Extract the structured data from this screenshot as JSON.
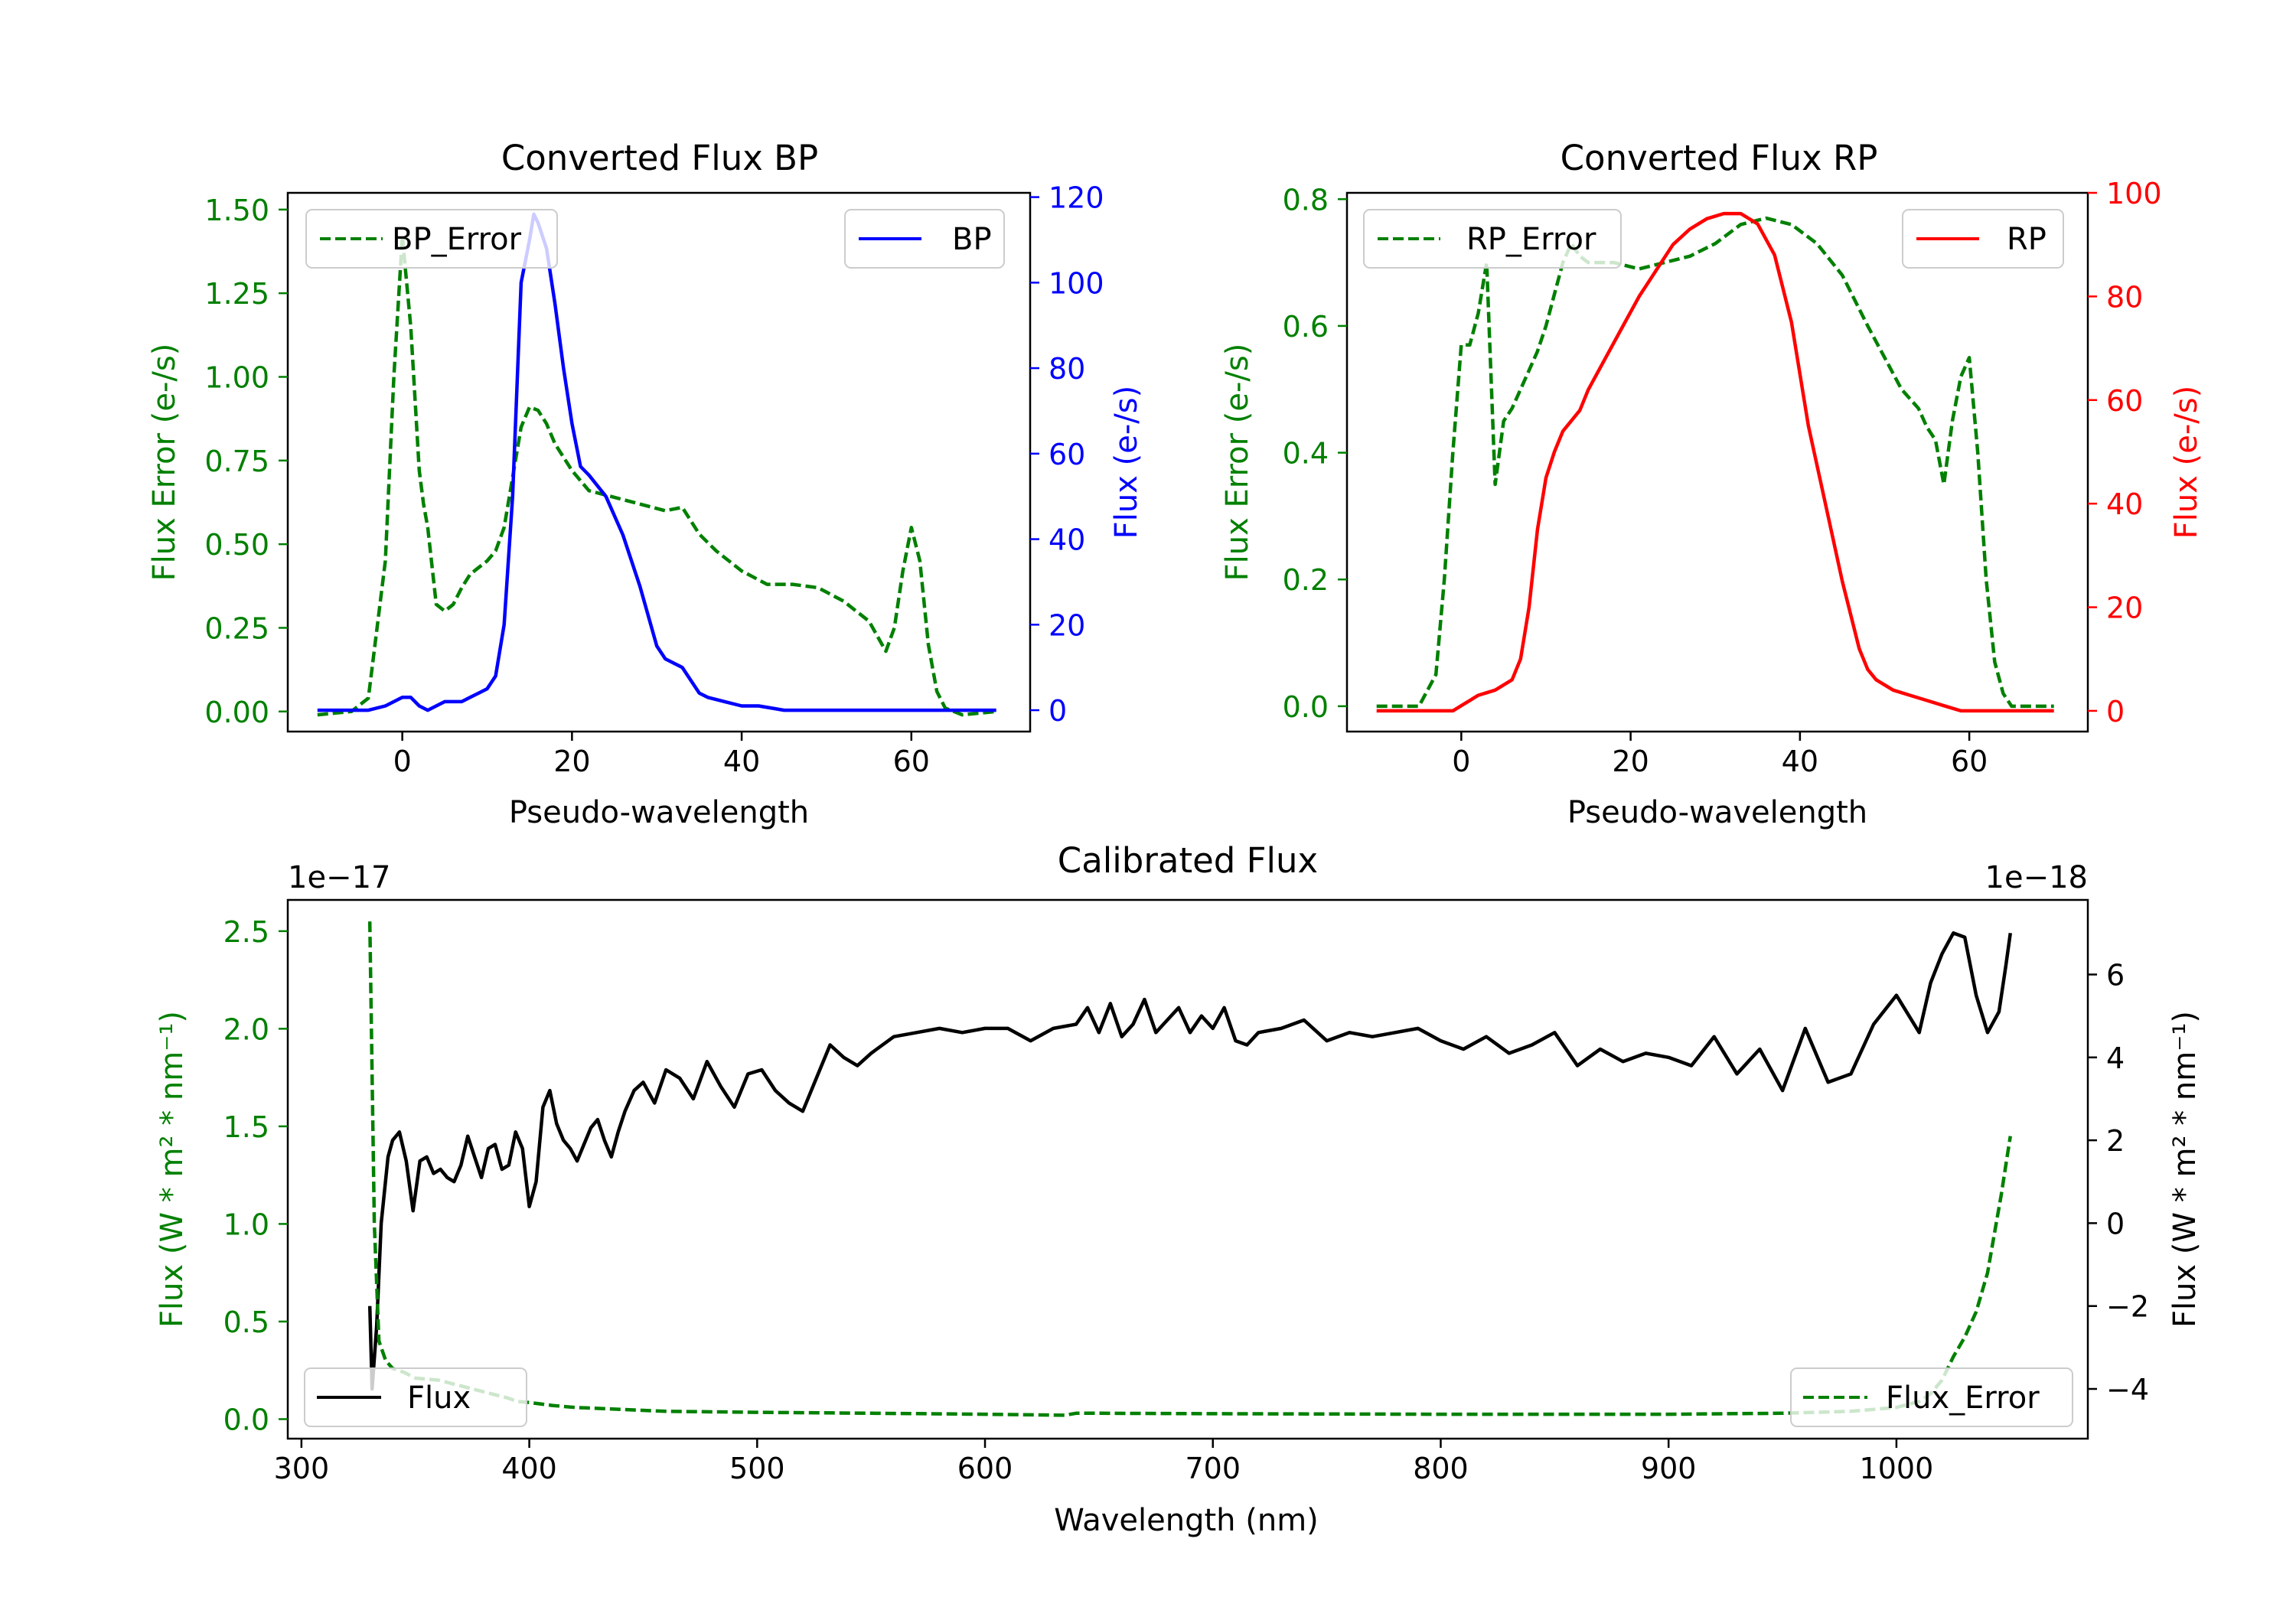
{
  "figure": {
    "background": "#ffffff",
    "axis_color": "#000000"
  },
  "colors": {
    "green": "#008000",
    "blue": "#0000ff",
    "red": "#ff0000",
    "black": "#000000"
  },
  "chart_data": [
    {
      "id": "bp",
      "type": "line",
      "title": "Converted Flux BP",
      "xlabel": "Pseudo-wavelength",
      "xlim": [
        -13.5,
        74
      ],
      "xticks": [
        0,
        20,
        40,
        60
      ],
      "xtick_labels": [
        "0",
        "20",
        "40",
        "60"
      ],
      "left_axis": {
        "ylabel": "Flux Error (e-/s)",
        "color": "#008000",
        "ylim": [
          -0.06,
          1.55
        ],
        "yticks": [
          0,
          0.25,
          0.5,
          0.75,
          1.0,
          1.25,
          1.5
        ],
        "ytick_labels": [
          "0.00",
          "0.25",
          "0.50",
          "0.75",
          "1.00",
          "1.25",
          "1.50"
        ]
      },
      "right_axis": {
        "ylabel": "Flux (e-/s)",
        "color": "#0000ff",
        "ylim": [
          -5,
          121
        ],
        "yticks": [
          0,
          20,
          40,
          60,
          80,
          100,
          120
        ],
        "ytick_labels": [
          "0",
          "20",
          "40",
          "60",
          "80",
          "100",
          "120"
        ]
      },
      "series": [
        {
          "name": "BP_Error",
          "label": "BP_Error",
          "axis": "left",
          "color": "#008000",
          "style": "dashed",
          "x": [
            -10,
            -6,
            -4,
            -2,
            -1,
            0,
            1,
            2,
            2.5,
            3,
            4,
            5,
            6,
            7,
            8,
            9,
            10,
            11,
            12,
            13,
            14,
            15,
            16,
            17,
            18,
            20,
            22,
            25,
            28,
            31,
            33,
            35,
            37,
            40,
            43,
            46,
            49,
            52,
            55,
            57,
            58,
            59,
            60,
            61,
            62,
            63,
            64,
            66,
            70
          ],
          "y": [
            -0.01,
            0.0,
            0.04,
            0.45,
            1.0,
            1.42,
            1.15,
            0.72,
            0.62,
            0.55,
            0.32,
            0.3,
            0.32,
            0.37,
            0.41,
            0.43,
            0.45,
            0.48,
            0.55,
            0.7,
            0.85,
            0.91,
            0.9,
            0.86,
            0.8,
            0.72,
            0.66,
            0.64,
            0.62,
            0.6,
            0.61,
            0.53,
            0.48,
            0.42,
            0.38,
            0.38,
            0.37,
            0.33,
            0.27,
            0.18,
            0.25,
            0.42,
            0.55,
            0.45,
            0.2,
            0.06,
            0.01,
            -0.01,
            0.0
          ]
        },
        {
          "name": "BP",
          "label": "BP",
          "axis": "right",
          "color": "#0000ff",
          "style": "solid",
          "x": [
            -10,
            -4,
            -2,
            0,
            1,
            2,
            3,
            4,
            5,
            6,
            7,
            8,
            9,
            10,
            11,
            12,
            13,
            14,
            15,
            15.5,
            16,
            17,
            18,
            19,
            20,
            21,
            22,
            24,
            26,
            28,
            30,
            31,
            32,
            33,
            34,
            35,
            36,
            38,
            40,
            42,
            45,
            48,
            51,
            54,
            57,
            60,
            63,
            66,
            70
          ],
          "y": [
            0,
            0,
            1,
            3,
            3,
            1,
            0,
            1,
            2,
            2,
            2,
            3,
            4,
            5,
            8,
            20,
            50,
            100,
            110,
            116,
            114,
            108,
            95,
            80,
            67,
            57,
            55,
            50,
            41,
            29,
            15,
            12,
            11,
            10,
            7,
            4,
            3,
            2,
            1,
            1,
            0,
            0,
            0,
            0,
            0,
            0,
            0,
            0,
            0
          ]
        }
      ],
      "legend": [
        {
          "label": "BP_Error",
          "position": "upper-left"
        },
        {
          "label": "BP",
          "position": "upper-right"
        }
      ]
    },
    {
      "id": "rp",
      "type": "line",
      "title": "Converted Flux RP",
      "xlabel": "Pseudo-wavelength",
      "xlim": [
        -13.5,
        74
      ],
      "xticks": [
        0,
        20,
        40,
        60
      ],
      "xtick_labels": [
        "0",
        "20",
        "40",
        "60"
      ],
      "left_axis": {
        "ylabel": "Flux Error (e-/s)",
        "color": "#008000",
        "ylim": [
          -0.04,
          0.81
        ],
        "yticks": [
          0,
          0.2,
          0.4,
          0.6,
          0.8
        ],
        "ytick_labels": [
          "0.0",
          "0.2",
          "0.4",
          "0.6",
          "0.8"
        ]
      },
      "right_axis": {
        "ylabel": "Flux (e-/s)",
        "color": "#ff0000",
        "ylim": [
          -4,
          100
        ],
        "yticks": [
          0,
          20,
          40,
          60,
          80,
          100
        ],
        "ytick_labels": [
          "0",
          "20",
          "40",
          "60",
          "80",
          "100"
        ]
      },
      "series": [
        {
          "name": "RP_Error",
          "label": "RP_Error",
          "axis": "left",
          "color": "#008000",
          "style": "dashed",
          "x": [
            -10,
            -5,
            -3,
            -2,
            -1,
            0,
            1,
            2,
            3,
            4,
            5,
            6,
            7,
            8,
            9,
            10,
            11,
            12,
            13,
            14,
            15,
            18,
            21,
            24,
            27,
            30,
            33,
            36,
            39,
            42,
            45,
            48,
            50,
            52,
            54,
            55,
            56,
            57,
            58,
            59,
            60,
            61,
            62,
            63,
            64,
            65,
            70
          ],
          "y": [
            0,
            0.0,
            0.05,
            0.2,
            0.4,
            0.57,
            0.57,
            0.62,
            0.7,
            0.35,
            0.45,
            0.47,
            0.5,
            0.53,
            0.56,
            0.6,
            0.65,
            0.7,
            0.73,
            0.71,
            0.7,
            0.7,
            0.69,
            0.7,
            0.71,
            0.73,
            0.76,
            0.77,
            0.76,
            0.73,
            0.68,
            0.6,
            0.55,
            0.5,
            0.47,
            0.44,
            0.42,
            0.35,
            0.45,
            0.52,
            0.55,
            0.4,
            0.2,
            0.07,
            0.02,
            0.0,
            0.0
          ]
        },
        {
          "name": "RP",
          "label": "RP",
          "axis": "right",
          "color": "#ff0000",
          "style": "solid",
          "x": [
            -10,
            -3,
            -2,
            -1,
            0,
            1,
            2,
            4,
            5,
            6,
            7,
            8,
            9,
            10,
            11,
            12,
            13,
            14,
            15,
            17,
            19,
            21,
            23,
            25,
            27,
            29,
            31,
            33,
            35,
            37,
            39,
            41,
            43,
            45,
            47,
            48,
            49,
            50,
            51,
            53,
            55,
            57,
            59,
            61,
            63,
            70
          ],
          "y": [
            0,
            0,
            0,
            0,
            1,
            2,
            3,
            4,
            5,
            6,
            10,
            20,
            35,
            45,
            50,
            54,
            56,
            58,
            62,
            68,
            74,
            80,
            85,
            90,
            93,
            95,
            96,
            96,
            94,
            88,
            75,
            55,
            40,
            25,
            12,
            8,
            6,
            5,
            4,
            3,
            2,
            1,
            0,
            0,
            0,
            0
          ]
        }
      ],
      "legend": [
        {
          "label": "RP_Error",
          "position": "upper-left"
        },
        {
          "label": "RP",
          "position": "upper-right"
        }
      ]
    },
    {
      "id": "calibrated",
      "type": "line",
      "title": "Calibrated Flux",
      "xlabel": "Wavelength (nm)",
      "xlim": [
        294,
        1084
      ],
      "xticks": [
        300,
        400,
        500,
        600,
        700,
        800,
        900,
        1000
      ],
      "xtick_labels": [
        "300",
        "400",
        "500",
        "600",
        "700",
        "800",
        "900",
        "1000"
      ],
      "left_axis": {
        "ylabel": "Flux (W * m² * nm⁻¹)",
        "color": "#008000",
        "ylim": [
          -0.1,
          2.66
        ],
        "offset_label": "1e−17",
        "yticks": [
          0,
          0.5,
          1.0,
          1.5,
          2.0,
          2.5
        ],
        "ytick_labels": [
          "0.0",
          "0.5",
          "1.0",
          "1.5",
          "2.0",
          "2.5"
        ]
      },
      "right_axis": {
        "ylabel": "Flux (W * m² * nm⁻¹)",
        "color": "#000000",
        "ylim": [
          -5.2,
          7.8
        ],
        "offset_label": "1e−18",
        "yticks": [
          -4,
          -2,
          0,
          2,
          4,
          6
        ],
        "ytick_labels": [
          "−4",
          "−2",
          "0",
          "2",
          "4",
          "6"
        ]
      },
      "series": [
        {
          "name": "Flux",
          "label": "Flux",
          "axis": "right",
          "color": "#000000",
          "style": "solid",
          "x": [
            330,
            331,
            333,
            335,
            338,
            340,
            343,
            346,
            349,
            352,
            355,
            358,
            361,
            364,
            367,
            370,
            373,
            376,
            379,
            382,
            385,
            388,
            391,
            394,
            397,
            400,
            403,
            406,
            409,
            412,
            415,
            418,
            421,
            424,
            427,
            430,
            433,
            436,
            439,
            442,
            446,
            450,
            455,
            460,
            466,
            472,
            478,
            484,
            490,
            496,
            502,
            508,
            514,
            520,
            526,
            532,
            538,
            544,
            550,
            560,
            570,
            580,
            590,
            600,
            610,
            620,
            630,
            640,
            645,
            650,
            655,
            660,
            665,
            670,
            675,
            680,
            685,
            690,
            695,
            700,
            705,
            710,
            715,
            720,
            730,
            740,
            750,
            760,
            770,
            780,
            790,
            800,
            810,
            820,
            830,
            840,
            850,
            860,
            870,
            880,
            890,
            900,
            910,
            920,
            930,
            940,
            950,
            960,
            970,
            980,
            990,
            1000,
            1010,
            1015,
            1020,
            1025,
            1030,
            1035,
            1040,
            1045,
            1048,
            1050
          ],
          "y": [
            -2.0,
            -4.0,
            -2.5,
            0,
            1.6,
            2.0,
            2.2,
            1.5,
            0.3,
            1.5,
            1.6,
            1.2,
            1.3,
            1.1,
            1.0,
            1.4,
            2.1,
            1.6,
            1.1,
            1.8,
            1.9,
            1.3,
            1.4,
            2.2,
            1.8,
            0.4,
            1.0,
            2.8,
            3.2,
            2.4,
            2.0,
            1.8,
            1.5,
            1.9,
            2.3,
            2.5,
            2.0,
            1.6,
            2.2,
            2.7,
            3.2,
            3.4,
            2.9,
            3.7,
            3.5,
            3.0,
            3.9,
            3.3,
            2.8,
            3.6,
            3.7,
            3.2,
            2.9,
            2.7,
            3.5,
            4.3,
            4.0,
            3.8,
            4.1,
            4.5,
            4.6,
            4.7,
            4.6,
            4.7,
            4.7,
            4.4,
            4.7,
            4.8,
            5.2,
            4.6,
            5.3,
            4.5,
            4.8,
            5.4,
            4.6,
            4.9,
            5.2,
            4.6,
            5.0,
            4.7,
            5.2,
            4.4,
            4.3,
            4.6,
            4.7,
            4.9,
            4.4,
            4.6,
            4.5,
            4.6,
            4.7,
            4.4,
            4.2,
            4.5,
            4.1,
            4.3,
            4.6,
            3.8,
            4.2,
            3.9,
            4.1,
            4.0,
            3.8,
            4.5,
            3.6,
            4.2,
            3.2,
            4.7,
            3.4,
            3.6,
            4.8,
            5.5,
            4.6,
            5.8,
            6.5,
            7.0,
            6.9,
            5.5,
            4.6,
            5.1,
            6.2,
            7.0
          ]
        },
        {
          "name": "Flux_Error",
          "label": "Flux_Error",
          "axis": "left",
          "color": "#008000",
          "style": "dashed",
          "x": [
            330,
            332,
            334,
            337,
            340,
            345,
            350,
            360,
            370,
            380,
            390,
            395,
            400,
            410,
            420,
            440,
            460,
            500,
            550,
            600,
            635,
            640,
            650,
            700,
            800,
            900,
            950,
            980,
            1000,
            1010,
            1015,
            1020,
            1025,
            1030,
            1035,
            1040,
            1043,
            1046,
            1048,
            1050
          ],
          "y": [
            2.55,
            1.0,
            0.4,
            0.3,
            0.26,
            0.24,
            0.21,
            0.2,
            0.17,
            0.14,
            0.11,
            0.09,
            0.085,
            0.07,
            0.06,
            0.05,
            0.04,
            0.035,
            0.03,
            0.025,
            0.02,
            0.03,
            0.03,
            0.028,
            0.025,
            0.025,
            0.03,
            0.04,
            0.06,
            0.09,
            0.13,
            0.2,
            0.32,
            0.42,
            0.55,
            0.75,
            0.95,
            1.15,
            1.3,
            1.45
          ]
        }
      ],
      "legend": [
        {
          "label": "Flux",
          "position": "lower-left"
        },
        {
          "label": "Flux_Error",
          "position": "lower-right"
        }
      ]
    }
  ]
}
